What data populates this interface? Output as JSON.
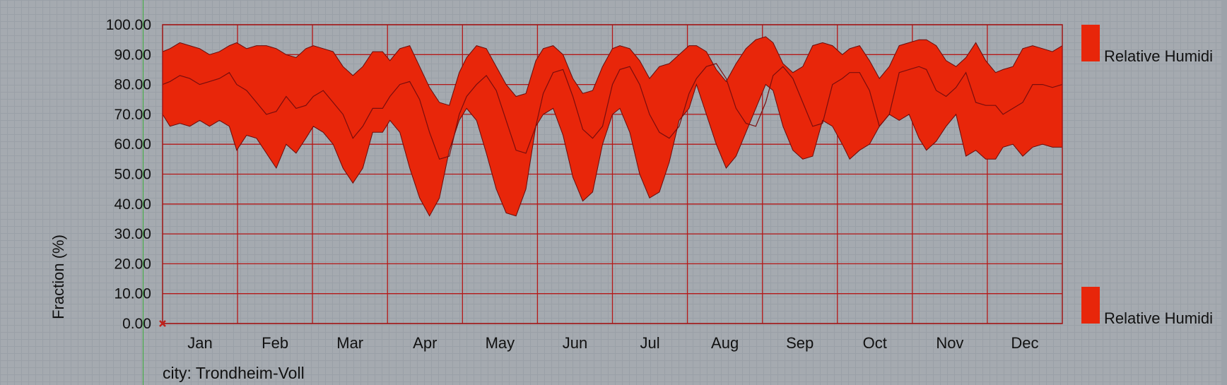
{
  "chart_data": {
    "type": "area",
    "ylabel": "Fraction (%)",
    "ylim": [
      0,
      100
    ],
    "yticks": [
      "0.00",
      "10.00",
      "20.00",
      "30.00",
      "40.00",
      "50.00",
      "60.00",
      "70.00",
      "80.00",
      "90.00",
      "100.00"
    ],
    "categories": [
      "Jan",
      "Feb",
      "Mar",
      "Apr",
      "May",
      "Jun",
      "Jul",
      "Aug",
      "Sep",
      "Oct",
      "Nov",
      "Dec"
    ],
    "grid": true,
    "legend_position": "right",
    "legend": [
      {
        "label": "Relative Humidi",
        "color": "#e8260a"
      },
      {
        "label": "Relative Humidi",
        "color": "#e8260a"
      }
    ],
    "caption": "city: Trondheim-Voll",
    "colors": {
      "band": "#e8260a",
      "grid": "#b51818",
      "frame": "#a01515",
      "mean_line": "#7a0d0d",
      "marker": "#c0201a"
    },
    "series": [
      {
        "name": "Relative Humidity (max)",
        "x": [
          1,
          4,
          8,
          12,
          16,
          20,
          24,
          28,
          31,
          35,
          39,
          43,
          47,
          51,
          55,
          59,
          62,
          66,
          70,
          74,
          78,
          82,
          86,
          90,
          93,
          97,
          101,
          105,
          109,
          113,
          117,
          121,
          124,
          128,
          132,
          136,
          140,
          144,
          148,
          152,
          155,
          159,
          163,
          167,
          171,
          175,
          179,
          183,
          186,
          190,
          194,
          198,
          202,
          206,
          210,
          214,
          217,
          221,
          225,
          229,
          233,
          237,
          241,
          245,
          248,
          252,
          256,
          260,
          264,
          268,
          272,
          276,
          279,
          283,
          287,
          291,
          295,
          299,
          303,
          307,
          310,
          314,
          318,
          322,
          326,
          330,
          334,
          338,
          341,
          345,
          349,
          353,
          357,
          361,
          365
        ],
        "values": [
          91,
          92,
          94,
          93,
          92,
          90,
          91,
          93,
          94,
          92,
          93,
          93,
          92,
          90,
          89,
          92,
          93,
          92,
          91,
          86,
          83,
          86,
          91,
          91,
          88,
          92,
          93,
          86,
          79,
          74,
          73,
          84,
          89,
          93,
          92,
          86,
          80,
          76,
          77,
          88,
          92,
          93,
          90,
          82,
          77,
          78,
          86,
          92,
          93,
          92,
          88,
          82,
          86,
          87,
          90,
          93,
          93,
          91,
          85,
          81,
          87,
          92,
          95,
          96,
          94,
          87,
          84,
          86,
          93,
          94,
          93,
          90,
          92,
          93,
          88,
          82,
          86,
          93,
          94,
          95,
          95,
          93,
          88,
          86,
          89,
          94,
          88,
          84,
          85,
          86,
          92,
          93,
          92,
          91,
          93
        ]
      },
      {
        "name": "Relative Humidity (mean)",
        "x": [
          1,
          4,
          8,
          12,
          16,
          20,
          24,
          28,
          31,
          35,
          39,
          43,
          47,
          51,
          55,
          59,
          62,
          66,
          70,
          74,
          78,
          82,
          86,
          90,
          93,
          97,
          101,
          105,
          109,
          113,
          117,
          121,
          124,
          128,
          132,
          136,
          140,
          144,
          148,
          152,
          155,
          159,
          163,
          167,
          171,
          175,
          179,
          183,
          186,
          190,
          194,
          198,
          202,
          206,
          210,
          214,
          217,
          221,
          225,
          229,
          233,
          237,
          241,
          245,
          248,
          252,
          256,
          260,
          264,
          268,
          272,
          276,
          279,
          283,
          287,
          291,
          295,
          299,
          303,
          307,
          310,
          314,
          318,
          322,
          326,
          330,
          334,
          338,
          341,
          345,
          349,
          353,
          357,
          361,
          365
        ],
        "values": [
          80,
          81,
          83,
          82,
          80,
          81,
          82,
          84,
          80,
          78,
          74,
          70,
          71,
          76,
          72,
          73,
          76,
          78,
          74,
          70,
          62,
          66,
          72,
          72,
          76,
          80,
          81,
          75,
          64,
          55,
          56,
          70,
          76,
          80,
          83,
          78,
          68,
          58,
          57,
          66,
          77,
          84,
          85,
          76,
          65,
          62,
          66,
          80,
          85,
          86,
          80,
          70,
          64,
          62,
          66,
          77,
          82,
          86,
          87,
          82,
          72,
          67,
          66,
          74,
          83,
          86,
          82,
          74,
          66,
          67,
          80,
          82,
          84,
          84,
          78,
          66,
          70,
          84,
          85,
          86,
          85,
          78,
          76,
          79,
          84,
          74,
          73,
          73,
          70,
          72,
          74,
          80,
          80,
          79,
          80
        ]
      },
      {
        "name": "Relative Humidity (min)",
        "x": [
          1,
          4,
          8,
          12,
          16,
          20,
          24,
          28,
          31,
          35,
          39,
          43,
          47,
          51,
          55,
          59,
          62,
          66,
          70,
          74,
          78,
          82,
          86,
          90,
          93,
          97,
          101,
          105,
          109,
          113,
          117,
          121,
          124,
          128,
          132,
          136,
          140,
          144,
          148,
          152,
          155,
          159,
          163,
          167,
          171,
          175,
          179,
          183,
          186,
          190,
          194,
          198,
          202,
          206,
          210,
          214,
          217,
          221,
          225,
          229,
          233,
          237,
          241,
          245,
          248,
          252,
          256,
          260,
          264,
          268,
          272,
          276,
          279,
          283,
          287,
          291,
          295,
          299,
          303,
          307,
          310,
          314,
          318,
          322,
          326,
          330,
          334,
          338,
          341,
          345,
          349,
          353,
          357,
          361,
          365
        ],
        "values": [
          70,
          66,
          67,
          66,
          68,
          66,
          68,
          66,
          58,
          63,
          62,
          57,
          52,
          60,
          57,
          62,
          66,
          64,
          60,
          52,
          47,
          52,
          64,
          64,
          68,
          64,
          52,
          42,
          36,
          42,
          58,
          68,
          72,
          68,
          57,
          45,
          37,
          36,
          45,
          66,
          70,
          72,
          63,
          49,
          41,
          44,
          60,
          70,
          72,
          64,
          50,
          42,
          44,
          54,
          68,
          72,
          80,
          70,
          60,
          52,
          56,
          64,
          72,
          80,
          78,
          66,
          58,
          55,
          56,
          68,
          66,
          60,
          55,
          58,
          60,
          66,
          70,
          68,
          70,
          62,
          58,
          61,
          66,
          70,
          56,
          58,
          55,
          55,
          59,
          60,
          56,
          59,
          60,
          59,
          59
        ]
      }
    ]
  }
}
